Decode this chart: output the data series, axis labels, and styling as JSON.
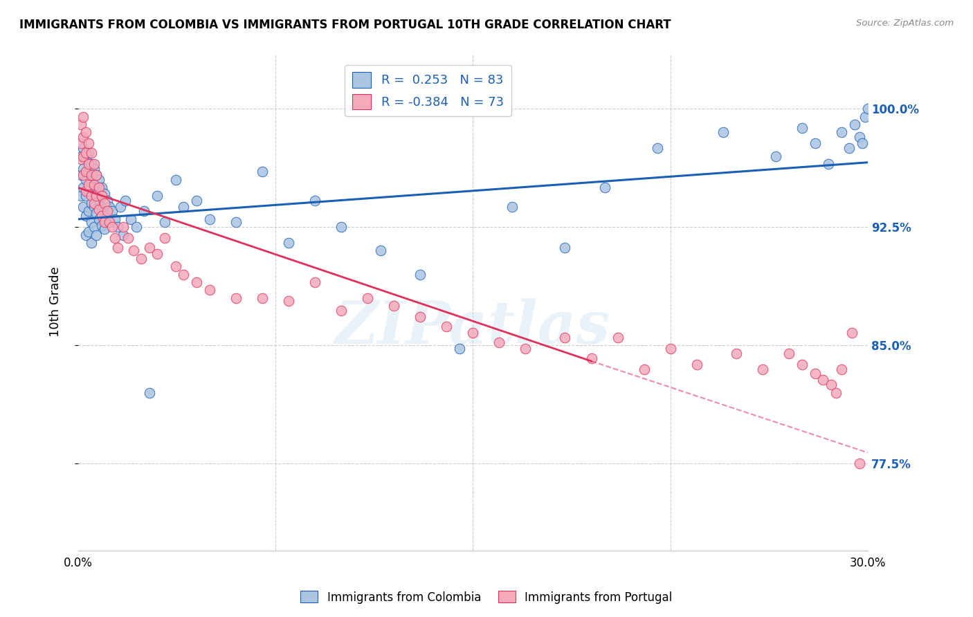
{
  "title": "IMMIGRANTS FROM COLOMBIA VS IMMIGRANTS FROM PORTUGAL 10TH GRADE CORRELATION CHART",
  "source": "Source: ZipAtlas.com",
  "ylabel": "10th Grade",
  "ytick_labels": [
    "77.5%",
    "85.0%",
    "92.5%",
    "100.0%"
  ],
  "ytick_values": [
    0.775,
    0.85,
    0.925,
    1.0
  ],
  "xlim": [
    0.0,
    0.3
  ],
  "ylim": [
    0.72,
    1.035
  ],
  "r_colombia": 0.253,
  "n_colombia": 83,
  "r_portugal": -0.384,
  "n_portugal": 73,
  "color_colombia": "#aac4e2",
  "color_portugal": "#f5aabb",
  "line_color_colombia": "#1a5fb4",
  "line_color_portugal": "#e0305a",
  "watermark": "ZIPatlas",
  "colombia_x": [
    0.001,
    0.001,
    0.001,
    0.002,
    0.002,
    0.002,
    0.002,
    0.003,
    0.003,
    0.003,
    0.003,
    0.003,
    0.004,
    0.004,
    0.004,
    0.004,
    0.004,
    0.005,
    0.005,
    0.005,
    0.005,
    0.005,
    0.006,
    0.006,
    0.006,
    0.006,
    0.007,
    0.007,
    0.007,
    0.007,
    0.008,
    0.008,
    0.008,
    0.009,
    0.009,
    0.009,
    0.01,
    0.01,
    0.01,
    0.011,
    0.011,
    0.012,
    0.012,
    0.013,
    0.014,
    0.015,
    0.016,
    0.017,
    0.018,
    0.02,
    0.022,
    0.025,
    0.027,
    0.03,
    0.033,
    0.037,
    0.04,
    0.045,
    0.05,
    0.06,
    0.07,
    0.08,
    0.09,
    0.1,
    0.115,
    0.13,
    0.145,
    0.165,
    0.185,
    0.2,
    0.22,
    0.245,
    0.265,
    0.275,
    0.28,
    0.285,
    0.29,
    0.293,
    0.295,
    0.297,
    0.298,
    0.299,
    0.3
  ],
  "colombia_y": [
    0.97,
    0.958,
    0.945,
    0.975,
    0.962,
    0.95,
    0.938,
    0.968,
    0.955,
    0.945,
    0.932,
    0.92,
    0.972,
    0.96,
    0.948,
    0.935,
    0.922,
    0.965,
    0.952,
    0.94,
    0.928,
    0.915,
    0.962,
    0.95,
    0.938,
    0.925,
    0.958,
    0.946,
    0.934,
    0.92,
    0.955,
    0.942,
    0.93,
    0.95,
    0.938,
    0.926,
    0.946,
    0.935,
    0.924,
    0.942,
    0.932,
    0.938,
    0.928,
    0.935,
    0.93,
    0.925,
    0.938,
    0.92,
    0.942,
    0.93,
    0.925,
    0.935,
    0.82,
    0.945,
    0.928,
    0.955,
    0.938,
    0.942,
    0.93,
    0.928,
    0.96,
    0.915,
    0.942,
    0.925,
    0.91,
    0.895,
    0.848,
    0.938,
    0.912,
    0.95,
    0.975,
    0.985,
    0.97,
    0.988,
    0.978,
    0.965,
    0.985,
    0.975,
    0.99,
    0.982,
    0.978,
    0.995,
    1.0
  ],
  "portugal_x": [
    0.001,
    0.001,
    0.001,
    0.002,
    0.002,
    0.002,
    0.002,
    0.003,
    0.003,
    0.003,
    0.003,
    0.004,
    0.004,
    0.004,
    0.005,
    0.005,
    0.005,
    0.006,
    0.006,
    0.006,
    0.007,
    0.007,
    0.008,
    0.008,
    0.009,
    0.009,
    0.01,
    0.01,
    0.011,
    0.012,
    0.013,
    0.014,
    0.015,
    0.017,
    0.019,
    0.021,
    0.024,
    0.027,
    0.03,
    0.033,
    0.037,
    0.04,
    0.045,
    0.05,
    0.06,
    0.07,
    0.08,
    0.09,
    0.1,
    0.11,
    0.12,
    0.13,
    0.14,
    0.15,
    0.16,
    0.17,
    0.185,
    0.195,
    0.205,
    0.215,
    0.225,
    0.235,
    0.25,
    0.26,
    0.27,
    0.275,
    0.28,
    0.283,
    0.286,
    0.288,
    0.29,
    0.294,
    0.297
  ],
  "portugal_y": [
    0.99,
    0.978,
    0.968,
    0.995,
    0.982,
    0.97,
    0.958,
    0.985,
    0.972,
    0.96,
    0.948,
    0.978,
    0.965,
    0.952,
    0.972,
    0.958,
    0.945,
    0.965,
    0.952,
    0.94,
    0.958,
    0.945,
    0.95,
    0.936,
    0.945,
    0.932,
    0.94,
    0.928,
    0.935,
    0.928,
    0.925,
    0.918,
    0.912,
    0.925,
    0.918,
    0.91,
    0.905,
    0.912,
    0.908,
    0.918,
    0.9,
    0.895,
    0.89,
    0.885,
    0.88,
    0.88,
    0.878,
    0.89,
    0.872,
    0.88,
    0.875,
    0.868,
    0.862,
    0.858,
    0.852,
    0.848,
    0.855,
    0.842,
    0.855,
    0.835,
    0.848,
    0.838,
    0.845,
    0.835,
    0.845,
    0.838,
    0.832,
    0.828,
    0.825,
    0.82,
    0.835,
    0.858,
    0.775
  ]
}
